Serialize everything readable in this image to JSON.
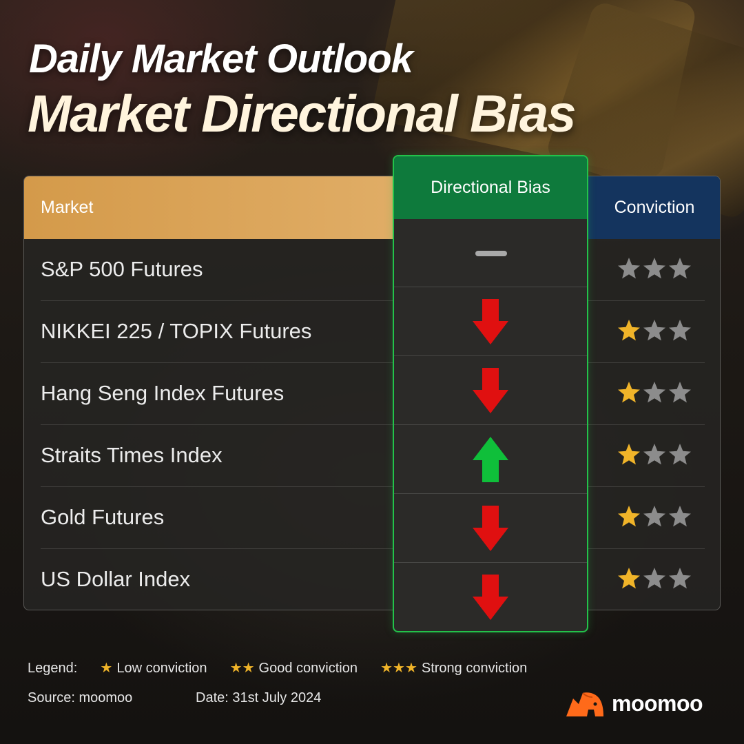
{
  "header": {
    "title": "Daily Market Outlook",
    "subtitle": "Market Directional Bias"
  },
  "table": {
    "columns": {
      "market": "Market",
      "bias": "Directional Bias",
      "conviction": "Conviction"
    },
    "rows": [
      {
        "market": "S&P 500 Futures",
        "bias": "neutral",
        "conviction": 0
      },
      {
        "market": "NIKKEI 225 / TOPIX Futures",
        "bias": "down",
        "conviction": 1
      },
      {
        "market": "Hang Seng Index Futures",
        "bias": "down",
        "conviction": 1
      },
      {
        "market": "Straits Times Index",
        "bias": "up",
        "conviction": 1
      },
      {
        "market": "Gold Futures",
        "bias": "down",
        "conviction": 1
      },
      {
        "market": "US Dollar Index",
        "bias": "down",
        "conviction": 1
      }
    ],
    "conviction_max": 3
  },
  "legend": {
    "label": "Legend:",
    "items": [
      {
        "stars": "★",
        "text": "Low conviction"
      },
      {
        "stars": "★★",
        "text": "Good conviction"
      },
      {
        "stars": "★★★",
        "text": "Strong conviction"
      }
    ]
  },
  "footer": {
    "source": "Source: moomoo",
    "date": "Date: 31st July 2024",
    "brand": "moomoo"
  },
  "colors": {
    "up": "#0fbf3a",
    "down": "#e01010",
    "neutral": "#a9a9a9",
    "star_on": "#f0b429",
    "star_off": "#8c8c8c",
    "market_header": "#dca258",
    "bias_header": "#0e7a3c",
    "conviction_header": "#14345e",
    "brand": "#ff6a1a"
  },
  "icons": {
    "up": "arrow-up-icon",
    "down": "arrow-down-icon",
    "neutral": "dash-icon",
    "star": "star-icon",
    "brand": "moomoo-bull-logo"
  }
}
